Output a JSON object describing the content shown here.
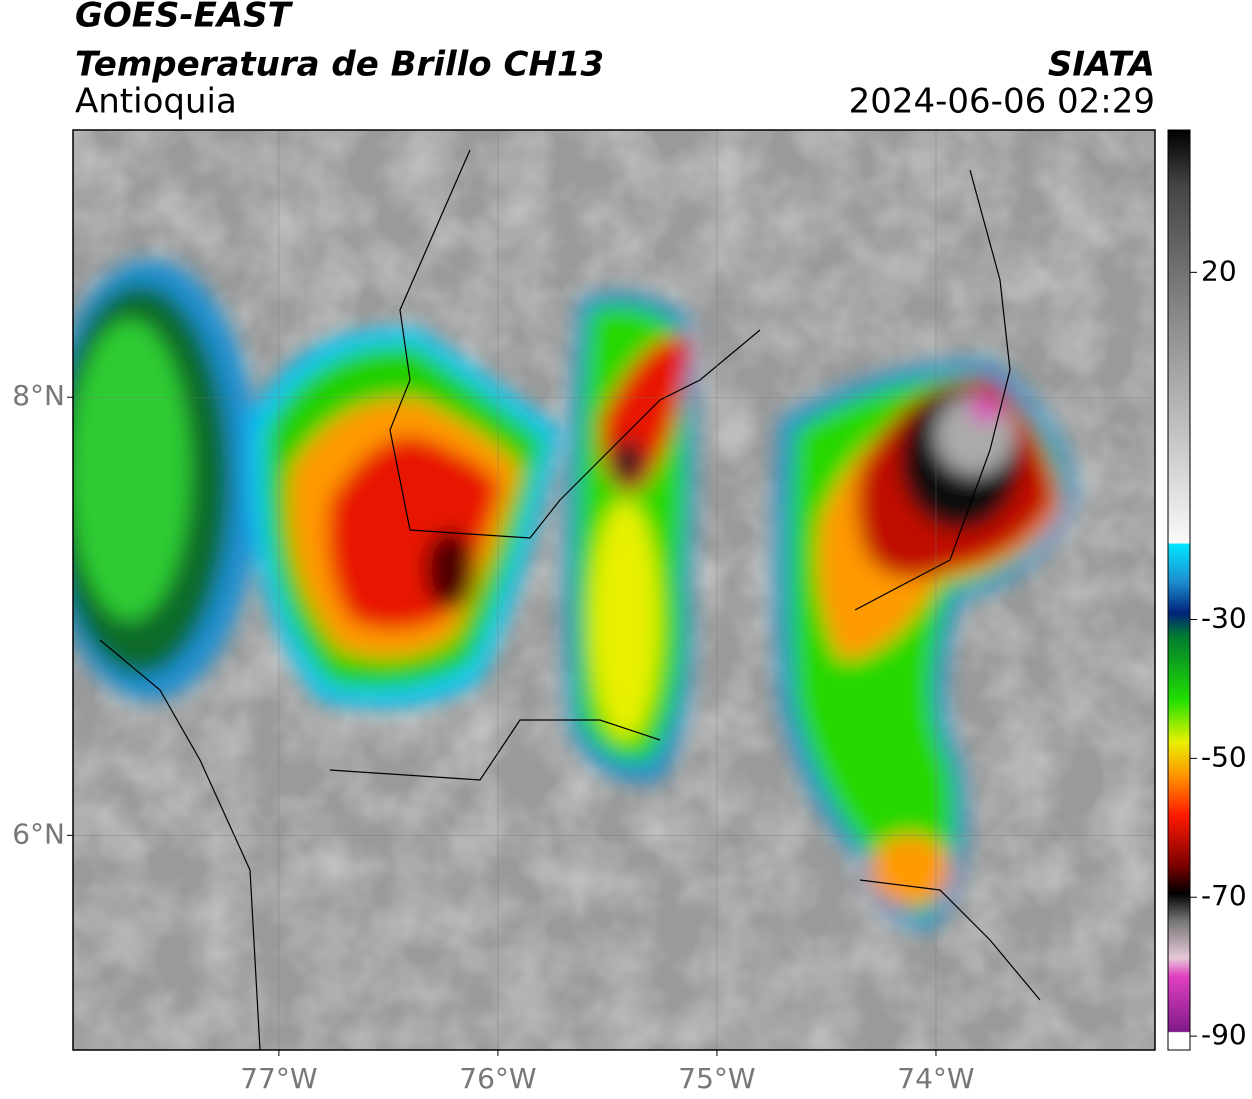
{
  "header": {
    "title": "GOES-EAST",
    "subtitle": "Temperatura de Brillo CH13",
    "region": "Antioquia",
    "source": "SIATA",
    "timestamp": "2024-06-06 02:29"
  },
  "map": {
    "xlim": [
      -77.94,
      -73.0
    ],
    "ylim": [
      5.02,
      9.22
    ],
    "xticks": [
      {
        "value": -77,
        "label": "77°W"
      },
      {
        "value": -76,
        "label": "76°W"
      },
      {
        "value": -75,
        "label": "75°W"
      },
      {
        "value": -74,
        "label": "74°W"
      }
    ],
    "yticks": [
      {
        "value": 8,
        "label": "8°N"
      },
      {
        "value": 6,
        "label": "6°N"
      }
    ],
    "grid": true
  },
  "colorbar": {
    "lim": [
      -92,
      40.5
    ],
    "ticks": [
      20,
      -30,
      -50,
      -70,
      -90
    ]
  }
}
